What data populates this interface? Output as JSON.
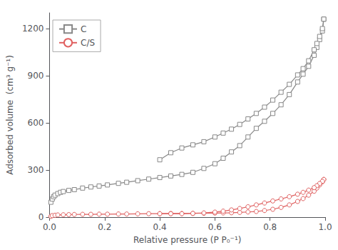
{
  "chart_data": {
    "type": "line",
    "xlabel": "Relative pressure (P P₀⁻¹)",
    "ylabel": "Adsorbed volume  (cm³ g⁻¹)",
    "xlim": [
      0.0,
      1.0
    ],
    "ylim": [
      0,
      1300
    ],
    "xticks": [
      {
        "value": 0.0,
        "label": "0.0"
      },
      {
        "value": 0.2,
        "label": "0.2"
      },
      {
        "value": 0.4,
        "label": "0.4"
      },
      {
        "value": 0.6,
        "label": "0.6"
      },
      {
        "value": 0.8,
        "label": "0.8"
      },
      {
        "value": 1.0,
        "label": "1.0"
      }
    ],
    "yticks": [
      0,
      300,
      600,
      900,
      1200
    ],
    "grid": false,
    "legend": "upper left",
    "series": [
      {
        "name": "C",
        "color": "#888888",
        "marker": "square",
        "x": [
          0.005,
          0.01,
          0.015,
          0.02,
          0.03,
          0.04,
          0.05,
          0.07,
          0.09,
          0.12,
          0.15,
          0.18,
          0.21,
          0.25,
          0.28,
          0.32,
          0.36,
          0.4,
          0.44,
          0.48,
          0.52,
          0.56,
          0.6,
          0.63,
          0.66,
          0.69,
          0.72,
          0.75,
          0.78,
          0.81,
          0.84,
          0.87,
          0.9,
          0.92,
          0.94,
          0.96,
          0.97,
          0.98,
          0.99,
          0.995
        ],
        "values": [
          95,
          115,
          130,
          140,
          150,
          158,
          163,
          170,
          175,
          185,
          192,
          198,
          205,
          215,
          222,
          232,
          242,
          252,
          262,
          272,
          285,
          310,
          340,
          375,
          415,
          455,
          510,
          565,
          610,
          660,
          715,
          780,
          860,
          910,
          960,
          1030,
          1080,
          1130,
          1185,
          1260
        ]
      },
      {
        "color": "#888888",
        "marker": "square",
        "x": [
          0.995,
          0.99,
          0.98,
          0.97,
          0.96,
          0.94,
          0.92,
          0.9,
          0.87,
          0.84,
          0.81,
          0.78,
          0.75,
          0.72,
          0.69,
          0.66,
          0.63,
          0.6,
          0.56,
          0.52,
          0.48,
          0.44,
          0.4
        ],
        "values": [
          1260,
          1200,
          1150,
          1105,
          1065,
          995,
          945,
          905,
          845,
          795,
          745,
          700,
          660,
          625,
          590,
          560,
          535,
          510,
          480,
          460,
          440,
          410,
          365
        ]
      },
      {
        "name": "C/S",
        "color": "#e06060",
        "marker": "circle",
        "x": [
          0.005,
          0.01,
          0.02,
          0.03,
          0.05,
          0.07,
          0.09,
          0.12,
          0.15,
          0.18,
          0.21,
          0.25,
          0.28,
          0.32,
          0.36,
          0.4,
          0.44,
          0.48,
          0.52,
          0.56,
          0.6,
          0.63,
          0.66,
          0.69,
          0.72,
          0.75,
          0.78,
          0.81,
          0.84,
          0.87,
          0.9,
          0.92,
          0.94,
          0.96,
          0.97,
          0.98,
          0.99,
          0.995
        ],
        "values": [
          5,
          10,
          12,
          14,
          15,
          16,
          17,
          18,
          18,
          19,
          19,
          20,
          20,
          21,
          22,
          22,
          23,
          23,
          24,
          25,
          26,
          27,
          28,
          30,
          33,
          36,
          42,
          50,
          62,
          78,
          100,
          118,
          140,
          165,
          185,
          205,
          225,
          240
        ]
      },
      {
        "color": "#e06060",
        "marker": "circle",
        "x": [
          0.995,
          0.99,
          0.98,
          0.97,
          0.96,
          0.94,
          0.92,
          0.9,
          0.87,
          0.84,
          0.81,
          0.78,
          0.75,
          0.72,
          0.69,
          0.66,
          0.63,
          0.6,
          0.56,
          0.52,
          0.48,
          0.44,
          0.4
        ],
        "values": [
          240,
          228,
          214,
          200,
          188,
          172,
          158,
          146,
          130,
          116,
          103,
          90,
          78,
          66,
          55,
          46,
          38,
          32,
          27,
          24,
          22,
          22,
          22
        ]
      }
    ]
  }
}
